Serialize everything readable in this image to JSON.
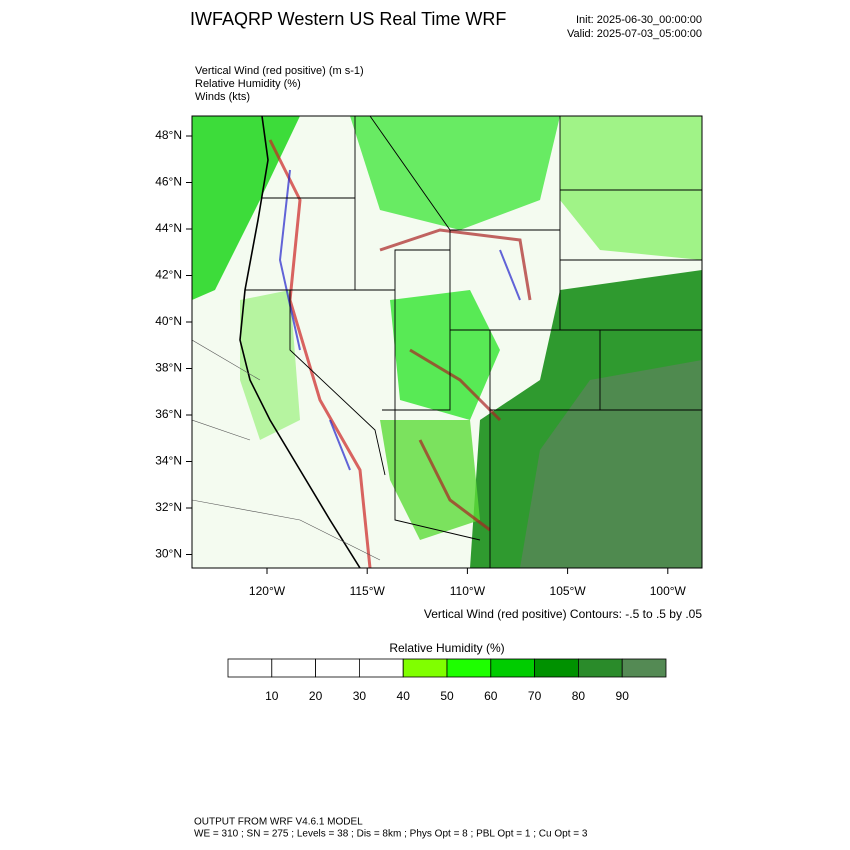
{
  "header": {
    "title": "IWFAQRP Western US Real Time WRF",
    "init": "Init: 2025-06-30_00:00:00",
    "valid": "Valid: 2025-07-03_05:00:00"
  },
  "fields": [
    "Vertical Wind (red positive)   (m s-1)",
    "Relative Humidity   (%)",
    "Winds   (kts)"
  ],
  "map": {
    "lat_labels": [
      "48°N",
      "46°N",
      "44°N",
      "42°N",
      "40°N",
      "38°N",
      "36°N",
      "34°N",
      "32°N",
      "30°N"
    ],
    "lon_labels": [
      "120°W",
      "115°W",
      "110°W",
      "105°W",
      "100°W"
    ],
    "contour_note": "Vertical Wind (red positive) Contours: -.5 to .5 by .05"
  },
  "colorbar": {
    "title": "Relative Humidity  (%)",
    "colors": [
      "#ffffff",
      "#ffffff",
      "#ffffff",
      "#ffffff",
      "#80ff00",
      "#1eff00",
      "#00cc00",
      "#009100",
      "#2a8b2a",
      "#548a54"
    ],
    "labels": [
      10,
      20,
      30,
      40,
      50,
      60,
      70,
      80,
      90
    ]
  },
  "footer": {
    "line1": "OUTPUT FROM WRF V4.6.1 MODEL",
    "line2": "WE = 310 ; SN = 275 ; Levels = 38 ; Dis = 8km ; Phys Opt = 8 ; PBL Opt = 1 ; Cu Opt = 3"
  }
}
